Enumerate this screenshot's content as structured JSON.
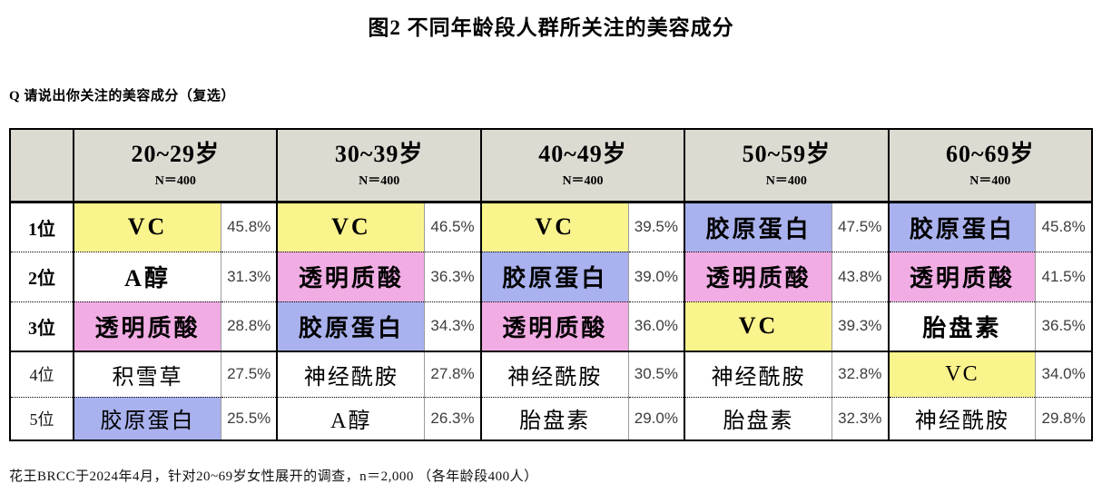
{
  "colors": {
    "header_bg": "#DDDAD2",
    "vc_yellow": "#FAF48C",
    "hyaluronic_pink": "#F1ACE4",
    "collagen_blue": "#A9B2EE",
    "plain_white": "#FFFFFF"
  },
  "chart_data": {
    "type": "table",
    "title": "图2 不同年龄段人群所关注的美容成分",
    "question": "Q 请说出你关注的美容成分（复选）",
    "footnote": "花王BRCC于2024年4月，针对20~69岁女性展开的调查，n＝2,000 （各年龄段400人）",
    "highlight_legend": {
      "VC": "#FAF48C",
      "透明质酸": "#F1ACE4",
      "胶原蛋白": "#A9B2EE"
    },
    "columns": [
      {
        "label": "20~29岁",
        "n_label": "N＝400"
      },
      {
        "label": "30~39岁",
        "n_label": "N＝400"
      },
      {
        "label": "40~49岁",
        "n_label": "N＝400"
      },
      {
        "label": "50~59岁",
        "n_label": "N＝400"
      },
      {
        "label": "60~69岁",
        "n_label": "N＝400"
      }
    ],
    "rows": [
      {
        "rank": "1位",
        "cells": [
          {
            "ingredient": "VC",
            "pct": 45.8,
            "value": "45.8%",
            "bg": "#FAF48C"
          },
          {
            "ingredient": "VC",
            "pct": 46.5,
            "value": "46.5%",
            "bg": "#FAF48C"
          },
          {
            "ingredient": "VC",
            "pct": 39.5,
            "value": "39.5%",
            "bg": "#FAF48C"
          },
          {
            "ingredient": "胶原蛋白",
            "pct": 47.5,
            "value": "47.5%",
            "bg": "#A9B2EE"
          },
          {
            "ingredient": "胶原蛋白",
            "pct": 45.8,
            "value": "45.8%",
            "bg": "#A9B2EE"
          }
        ]
      },
      {
        "rank": "2位",
        "cells": [
          {
            "ingredient": "A醇",
            "pct": 31.3,
            "value": "31.3%",
            "bg": "#FFFFFF"
          },
          {
            "ingredient": "透明质酸",
            "pct": 36.3,
            "value": "36.3%",
            "bg": "#F1ACE4"
          },
          {
            "ingredient": "胶原蛋白",
            "pct": 39.0,
            "value": "39.0%",
            "bg": "#A9B2EE"
          },
          {
            "ingredient": "透明质酸",
            "pct": 43.8,
            "value": "43.8%",
            "bg": "#F1ACE4"
          },
          {
            "ingredient": "透明质酸",
            "pct": 41.5,
            "value": "41.5%",
            "bg": "#F1ACE4"
          }
        ]
      },
      {
        "rank": "3位",
        "cells": [
          {
            "ingredient": "透明质酸",
            "pct": 28.8,
            "value": "28.8%",
            "bg": "#F1ACE4"
          },
          {
            "ingredient": "胶原蛋白",
            "pct": 34.3,
            "value": "34.3%",
            "bg": "#A9B2EE"
          },
          {
            "ingredient": "透明质酸",
            "pct": 36.0,
            "value": "36.0%",
            "bg": "#F1ACE4"
          },
          {
            "ingredient": "VC",
            "pct": 39.3,
            "value": "39.3%",
            "bg": "#FAF48C"
          },
          {
            "ingredient": "胎盘素",
            "pct": 36.5,
            "value": "36.5%",
            "bg": "#FFFFFF"
          }
        ]
      },
      {
        "rank": "4位",
        "cells": [
          {
            "ingredient": "积雪草",
            "pct": 27.5,
            "value": "27.5%",
            "bg": "#FFFFFF"
          },
          {
            "ingredient": "神经酰胺",
            "pct": 27.8,
            "value": "27.8%",
            "bg": "#FFFFFF"
          },
          {
            "ingredient": "神经酰胺",
            "pct": 30.5,
            "value": "30.5%",
            "bg": "#FFFFFF"
          },
          {
            "ingredient": "神经酰胺",
            "pct": 32.8,
            "value": "32.8%",
            "bg": "#FFFFFF"
          },
          {
            "ingredient": "VC",
            "pct": 34.0,
            "value": "34.0%",
            "bg": "#FAF48C"
          }
        ]
      },
      {
        "rank": "5位",
        "cells": [
          {
            "ingredient": "胶原蛋白",
            "pct": 25.5,
            "value": "25.5%",
            "bg": "#A9B2EE"
          },
          {
            "ingredient": "A醇",
            "pct": 26.3,
            "value": "26.3%",
            "bg": "#FFFFFF"
          },
          {
            "ingredient": "胎盘素",
            "pct": 29.0,
            "value": "29.0%",
            "bg": "#FFFFFF"
          },
          {
            "ingredient": "胎盘素",
            "pct": 32.3,
            "value": "32.3%",
            "bg": "#FFFFFF"
          },
          {
            "ingredient": "神经酰胺",
            "pct": 29.8,
            "value": "29.8%",
            "bg": "#FFFFFF"
          }
        ]
      }
    ]
  }
}
